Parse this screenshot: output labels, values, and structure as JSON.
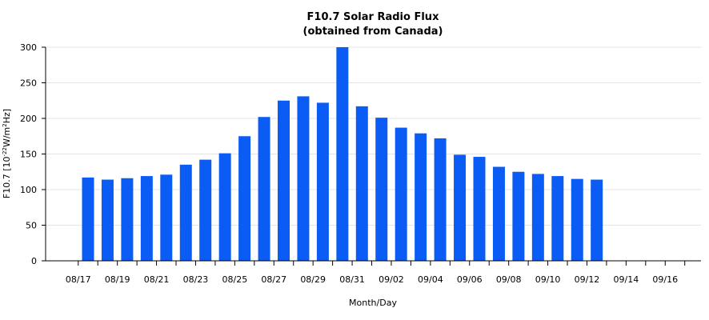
{
  "chart_data": {
    "type": "bar",
    "title": "F10.7 Solar Radio Flux",
    "subtitle": "(obtained from Canada)",
    "xlabel": "Month/Day",
    "ylabel_main": "F10.7 [10",
    "ylabel_exp": "-22",
    "ylabel_unit": "W/m",
    "ylabel_exp2": "2",
    "ylabel_end": "Hz]",
    "ylim": [
      0,
      300
    ],
    "yticks": [
      0,
      50,
      100,
      150,
      200,
      250,
      300
    ],
    "grid": true,
    "bar_color": "#0a5cf5",
    "categories": [
      "08/17",
      "08/18",
      "08/19",
      "08/20",
      "08/21",
      "08/22",
      "08/23",
      "08/24",
      "08/25",
      "08/26",
      "08/27",
      "08/28",
      "08/29",
      "08/30",
      "08/31",
      "09/01",
      "09/02",
      "09/03",
      "09/04",
      "09/05",
      "09/06",
      "09/07",
      "09/08",
      "09/09",
      "09/10",
      "09/11",
      "09/12",
      "09/13",
      "09/14",
      "09/15",
      "09/16",
      "09/17"
    ],
    "tick_labels": [
      "08/17",
      "08/19",
      "08/21",
      "08/23",
      "08/25",
      "08/27",
      "08/29",
      "08/31",
      "09/02",
      "09/04",
      "09/06",
      "09/08",
      "09/10",
      "09/12",
      "09/14",
      "09/16"
    ],
    "values": [
      117,
      114,
      116,
      119,
      121,
      135,
      142,
      151,
      175,
      202,
      225,
      231,
      222,
      300,
      217,
      201,
      187,
      179,
      172,
      149,
      146,
      132,
      125,
      122,
      119,
      115,
      114,
      null,
      null,
      null,
      null,
      null
    ]
  }
}
